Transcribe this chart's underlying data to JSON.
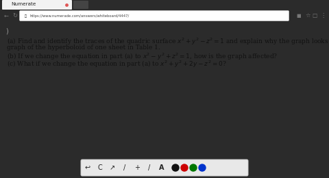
{
  "fig_w": 4.8,
  "fig_h": 2.6,
  "dpi": 100,
  "browser_dark_color": "#2b2b2b",
  "tab_bg": "#f2f2f2",
  "tab_text": "Numerate",
  "tab_x_color": "#e05555",
  "nav_bg": "#f5f5f5",
  "nav_border": "#dddddd",
  "url_text": "https://www.numerade.com/answers/whiteboard/4447/",
  "content_bg": "#ffffff",
  "content_text_color": "#111111",
  "font_size_content": 6.5,
  "toolbar_bg": "#e8e8e8",
  "toolbar_border": "#cccccc",
  "circle_colors": [
    "#111111",
    "#cc0000",
    "#007700",
    "#0033cc"
  ],
  "line_a1": "(a) Find and identify the traces of the quadric surface $x^2 + y^2 - z^2 = 1$ and explain why the graph looks like the",
  "line_a2": "graph of the hyperboloid of one sheet in Table 1.",
  "line_b": "(b) If we change the equation in part (a) to $x^2 - y^2 + z^2 = 1$, how is the graph affected?",
  "line_c": "(c) What if we change the equation in part (a) to $x^2 + y^2 + 2y - z^2 = 0$?",
  "page_icon_text": ")",
  "nav_icons_left": [
    "←",
    "↻"
  ],
  "nav_right_icons": [
    "■",
    "☆",
    "□",
    "⋮"
  ]
}
